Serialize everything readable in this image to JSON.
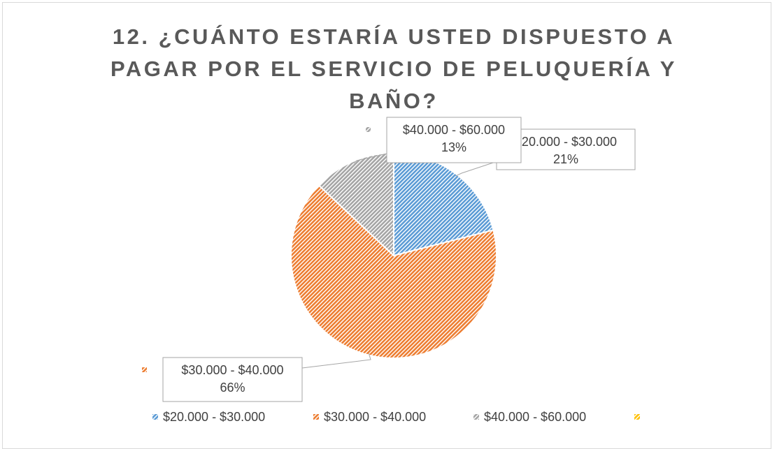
{
  "chart_data": {
    "type": "pie",
    "title": "12. ¿CUÁNTO ESTARÍA USTED DISPUESTO A PAGAR POR EL SERVICIO DE PELUQUERÍA Y BAÑO?",
    "categories": [
      "$20.000 - $30.000",
      "$30.000 - $40.000",
      "$40.000 - $60.000",
      null
    ],
    "values": [
      21,
      66,
      13,
      0
    ],
    "value_labels": [
      "21%",
      "66%",
      "13%",
      null
    ],
    "colors": [
      "#5b9bd5",
      "#ed7d31",
      "#a5a5a5",
      "#ffc000"
    ],
    "legend": "bottom"
  }
}
